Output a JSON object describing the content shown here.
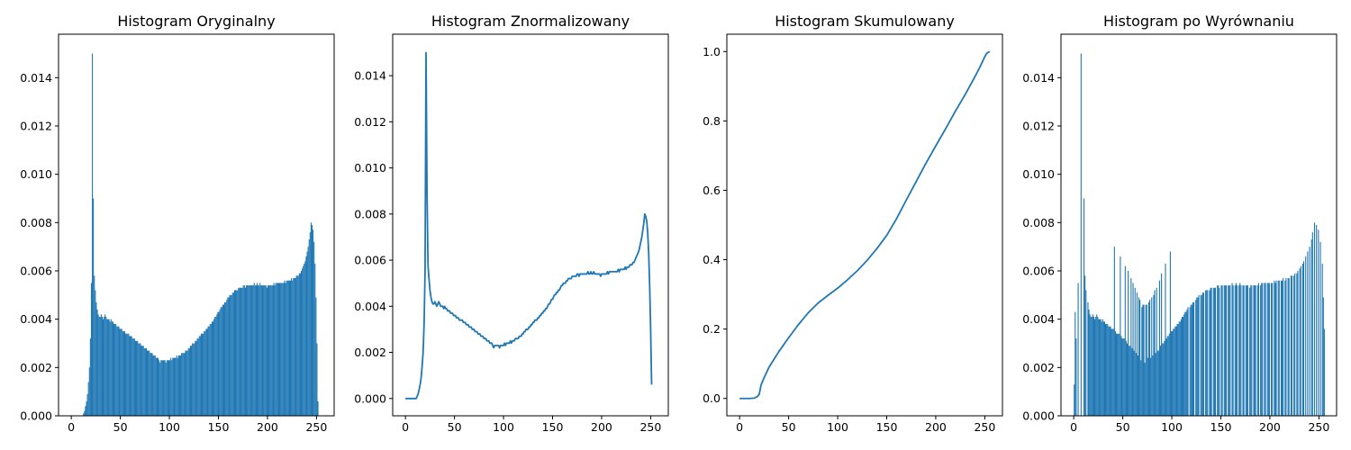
{
  "figure": {
    "series_color": "#1f77b4"
  },
  "chart_data": [
    {
      "type": "bar",
      "title": "Histogram Oryginalny",
      "xlim": [
        -13,
        268
      ],
      "ylim": [
        0,
        0.0158
      ],
      "xticks": [
        0,
        50,
        100,
        150,
        200,
        250
      ],
      "yticks": [
        0.0,
        0.002,
        0.004,
        0.006,
        0.008,
        0.01,
        0.012,
        0.014
      ],
      "ytick_labels": [
        "0.000",
        "0.002",
        "0.004",
        "0.006",
        "0.008",
        "0.010",
        "0.012",
        "0.014"
      ],
      "xticks_labels": [
        "0",
        "50",
        "100",
        "150",
        "200",
        "250"
      ],
      "bins": {
        "start": 0,
        "end": 256,
        "width": 1
      },
      "values": [
        0,
        0,
        0,
        0,
        0,
        0,
        0,
        0,
        0,
        0,
        0,
        0,
        0.0001,
        0.0002,
        0.0004,
        0.0006,
        0.0009,
        0.0014,
        0.002,
        0.0032,
        0.0055,
        0.015,
        0.009,
        0.0058,
        0.0052,
        0.0047,
        0.0044,
        0.0042,
        0.0041,
        0.0041,
        0.0042,
        0.0041,
        0.004,
        0.0041,
        0.0042,
        0.0041,
        0.004,
        0.004,
        0.004,
        0.0039,
        0.004,
        0.0039,
        0.0039,
        0.0038,
        0.0038,
        0.0038,
        0.0037,
        0.0037,
        0.0037,
        0.0036,
        0.0036,
        0.0036,
        0.0035,
        0.0035,
        0.0035,
        0.0034,
        0.0034,
        0.0034,
        0.0034,
        0.0033,
        0.0033,
        0.0033,
        0.0032,
        0.0032,
        0.0032,
        0.0031,
        0.0031,
        0.0031,
        0.003,
        0.003,
        0.003,
        0.0029,
        0.0029,
        0.0029,
        0.0028,
        0.0028,
        0.0028,
        0.0027,
        0.0027,
        0.0027,
        0.0026,
        0.0026,
        0.0026,
        0.0025,
        0.0025,
        0.0025,
        0.0024,
        0.0024,
        0.0024,
        0.0023,
        0.0022,
        0.0023,
        0.0023,
        0.0023,
        0.0023,
        0.0023,
        0.0022,
        0.0023,
        0.0023,
        0.0023,
        0.0023,
        0.0024,
        0.0023,
        0.0024,
        0.0024,
        0.0024,
        0.0024,
        0.0025,
        0.0024,
        0.0025,
        0.0025,
        0.0025,
        0.0026,
        0.0026,
        0.0026,
        0.0026,
        0.0027,
        0.0027,
        0.0027,
        0.0028,
        0.0028,
        0.0029,
        0.0029,
        0.003,
        0.003,
        0.003,
        0.0031,
        0.0031,
        0.0032,
        0.0032,
        0.0033,
        0.0033,
        0.0034,
        0.0034,
        0.0034,
        0.0035,
        0.0035,
        0.0036,
        0.0036,
        0.0037,
        0.0037,
        0.0038,
        0.0038,
        0.0039,
        0.0039,
        0.004,
        0.0041,
        0.0041,
        0.0042,
        0.0043,
        0.0043,
        0.0044,
        0.0045,
        0.0045,
        0.0046,
        0.0046,
        0.0047,
        0.0047,
        0.0048,
        0.0049,
        0.0049,
        0.005,
        0.005,
        0.005,
        0.0051,
        0.0051,
        0.0052,
        0.0052,
        0.0052,
        0.0052,
        0.0053,
        0.0053,
        0.0053,
        0.0053,
        0.0053,
        0.0054,
        0.0054,
        0.0053,
        0.0054,
        0.0054,
        0.0054,
        0.0054,
        0.0054,
        0.0054,
        0.0054,
        0.0054,
        0.0055,
        0.0054,
        0.0054,
        0.0055,
        0.0054,
        0.0054,
        0.0055,
        0.0054,
        0.0054,
        0.0054,
        0.0054,
        0.0054,
        0.0054,
        0.0053,
        0.0054,
        0.0054,
        0.0054,
        0.0054,
        0.0054,
        0.0054,
        0.0055,
        0.0054,
        0.0055,
        0.0055,
        0.0055,
        0.0055,
        0.0055,
        0.0055,
        0.0055,
        0.0055,
        0.0055,
        0.0056,
        0.0055,
        0.0056,
        0.0056,
        0.0056,
        0.0056,
        0.0056,
        0.0057,
        0.0056,
        0.0057,
        0.0057,
        0.0057,
        0.0058,
        0.0058,
        0.0058,
        0.0059,
        0.0059,
        0.006,
        0.0061,
        0.0062,
        0.0063,
        0.0064,
        0.0066,
        0.0068,
        0.007,
        0.0073,
        0.0076,
        0.008,
        0.0079,
        0.0077,
        0.0072,
        0.0063,
        0.0049,
        0.003,
        0.0006
      ]
    },
    {
      "type": "line",
      "title": "Histogram Znormalizowany",
      "xlim": [
        -13,
        268
      ],
      "ylim": [
        -0.00075,
        0.0158
      ],
      "xticks": [
        0,
        50,
        100,
        150,
        200,
        250
      ],
      "yticks": [
        0.0,
        0.002,
        0.004,
        0.006,
        0.008,
        0.01,
        0.012,
        0.014
      ],
      "ytick_labels": [
        "0.000",
        "0.002",
        "0.004",
        "0.006",
        "0.008",
        "0.010",
        "0.012",
        "0.014"
      ],
      "xticks_labels": [
        "0",
        "50",
        "100",
        "150",
        "200",
        "250"
      ],
      "x_start": 0,
      "values": [
        0,
        0,
        0,
        0,
        0,
        0,
        0,
        0,
        0,
        0,
        0,
        0,
        0.0001,
        0.0002,
        0.0004,
        0.0006,
        0.0009,
        0.0014,
        0.002,
        0.0032,
        0.0055,
        0.015,
        0.009,
        0.0058,
        0.0052,
        0.0047,
        0.0044,
        0.0042,
        0.0041,
        0.0041,
        0.0042,
        0.0041,
        0.004,
        0.0041,
        0.0042,
        0.0041,
        0.004,
        0.004,
        0.004,
        0.0039,
        0.004,
        0.0039,
        0.0039,
        0.0038,
        0.0038,
        0.0038,
        0.0037,
        0.0037,
        0.0037,
        0.0036,
        0.0036,
        0.0036,
        0.0035,
        0.0035,
        0.0035,
        0.0034,
        0.0034,
        0.0034,
        0.0034,
        0.0033,
        0.0033,
        0.0033,
        0.0032,
        0.0032,
        0.0032,
        0.0031,
        0.0031,
        0.0031,
        0.003,
        0.003,
        0.003,
        0.0029,
        0.0029,
        0.0029,
        0.0028,
        0.0028,
        0.0028,
        0.0027,
        0.0027,
        0.0027,
        0.0026,
        0.0026,
        0.0026,
        0.0025,
        0.0025,
        0.0025,
        0.0024,
        0.0024,
        0.0024,
        0.0023,
        0.0022,
        0.0023,
        0.0023,
        0.0023,
        0.0023,
        0.0023,
        0.0022,
        0.0023,
        0.0023,
        0.0023,
        0.0023,
        0.0024,
        0.0023,
        0.0024,
        0.0024,
        0.0024,
        0.0024,
        0.0025,
        0.0024,
        0.0025,
        0.0025,
        0.0025,
        0.0026,
        0.0026,
        0.0026,
        0.0026,
        0.0027,
        0.0027,
        0.0027,
        0.0028,
        0.0028,
        0.0029,
        0.0029,
        0.003,
        0.003,
        0.003,
        0.0031,
        0.0031,
        0.0032,
        0.0032,
        0.0033,
        0.0033,
        0.0034,
        0.0034,
        0.0034,
        0.0035,
        0.0035,
        0.0036,
        0.0036,
        0.0037,
        0.0037,
        0.0038,
        0.0038,
        0.0039,
        0.0039,
        0.004,
        0.0041,
        0.0041,
        0.0042,
        0.0043,
        0.0043,
        0.0044,
        0.0045,
        0.0045,
        0.0046,
        0.0046,
        0.0047,
        0.0047,
        0.0048,
        0.0049,
        0.0049,
        0.005,
        0.005,
        0.005,
        0.0051,
        0.0051,
        0.0052,
        0.0052,
        0.0052,
        0.0052,
        0.0053,
        0.0053,
        0.0053,
        0.0053,
        0.0053,
        0.0054,
        0.0054,
        0.0053,
        0.0054,
        0.0054,
        0.0054,
        0.0054,
        0.0054,
        0.0054,
        0.0054,
        0.0054,
        0.0055,
        0.0054,
        0.0054,
        0.0055,
        0.0054,
        0.0054,
        0.0055,
        0.0054,
        0.0054,
        0.0054,
        0.0054,
        0.0054,
        0.0054,
        0.0053,
        0.0054,
        0.0054,
        0.0054,
        0.0054,
        0.0054,
        0.0054,
        0.0055,
        0.0054,
        0.0055,
        0.0055,
        0.0055,
        0.0055,
        0.0055,
        0.0055,
        0.0055,
        0.0055,
        0.0055,
        0.0056,
        0.0055,
        0.0056,
        0.0056,
        0.0056,
        0.0056,
        0.0056,
        0.0057,
        0.0056,
        0.0057,
        0.0057,
        0.0057,
        0.0058,
        0.0058,
        0.0058,
        0.0059,
        0.0059,
        0.006,
        0.0061,
        0.0062,
        0.0063,
        0.0064,
        0.0066,
        0.0068,
        0.007,
        0.0073,
        0.0076,
        0.008,
        0.0079,
        0.0077,
        0.0072,
        0.0063,
        0.0049,
        0.003,
        0.0006
      ]
    },
    {
      "type": "line",
      "title": "Histogram Skumulowany",
      "xlim": [
        -13,
        268
      ],
      "ylim": [
        -0.05,
        1.05
      ],
      "xticks": [
        0,
        50,
        100,
        150,
        200,
        250
      ],
      "yticks": [
        0.0,
        0.2,
        0.4,
        0.6,
        0.8,
        1.0
      ],
      "ytick_labels": [
        "0.0",
        "0.2",
        "0.4",
        "0.6",
        "0.8",
        "1.0"
      ],
      "xticks_labels": [
        "0",
        "50",
        "100",
        "150",
        "200",
        "250"
      ],
      "cumulative_of_series": 1,
      "x": [
        0,
        10,
        15,
        18,
        20,
        22,
        25,
        30,
        40,
        50,
        60,
        70,
        80,
        90,
        100,
        110,
        120,
        130,
        140,
        150,
        160,
        170,
        180,
        190,
        200,
        210,
        220,
        230,
        240,
        245,
        250,
        252,
        255
      ],
      "values": [
        0,
        0,
        0.001,
        0.005,
        0.012,
        0.04,
        0.06,
        0.09,
        0.135,
        0.175,
        0.213,
        0.247,
        0.275,
        0.297,
        0.318,
        0.342,
        0.368,
        0.398,
        0.432,
        0.47,
        0.518,
        0.572,
        0.625,
        0.678,
        0.728,
        0.777,
        0.828,
        0.876,
        0.928,
        0.955,
        0.985,
        0.995,
        1.0
      ]
    },
    {
      "type": "bar",
      "title": "Histogram po Wyrównaniu",
      "xlim": [
        -13,
        268
      ],
      "ylim": [
        0,
        0.0158
      ],
      "xticks": [
        0,
        50,
        100,
        150,
        200,
        250
      ],
      "yticks": [
        0.0,
        0.002,
        0.004,
        0.006,
        0.008,
        0.01,
        0.012,
        0.014
      ],
      "ytick_labels": [
        "0.000",
        "0.002",
        "0.004",
        "0.006",
        "0.008",
        "0.010",
        "0.012",
        "0.014"
      ],
      "xticks_labels": [
        "0",
        "50",
        "100",
        "150",
        "200",
        "250"
      ],
      "equalized_from_series": 0
    }
  ]
}
